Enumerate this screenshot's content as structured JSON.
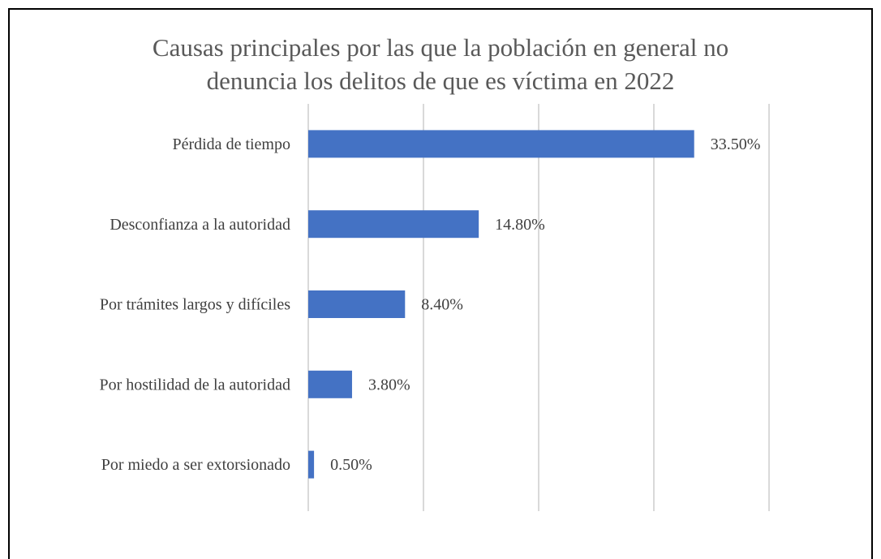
{
  "chart_data": {
    "type": "bar",
    "orientation": "horizontal",
    "title": [
      "Causas principales por las que la población en general no",
      "denuncia los delitos de que es víctima en 2022"
    ],
    "categories": [
      "Pérdida de tiempo",
      "Desconfianza a la autoridad",
      "Por trámites largos y difíciles",
      "Por hostilidad de la autoridad",
      "Por miedo a ser extorsionado"
    ],
    "values": [
      33.5,
      14.8,
      8.4,
      3.8,
      0.5
    ],
    "value_labels": [
      "33.50%",
      "14.80%",
      "8.40%",
      "3.80%",
      "0.50%"
    ],
    "color": "#4472c4",
    "xlim": [
      0,
      40
    ],
    "xticks": [
      0,
      10,
      20,
      30,
      40
    ],
    "grid": true
  }
}
